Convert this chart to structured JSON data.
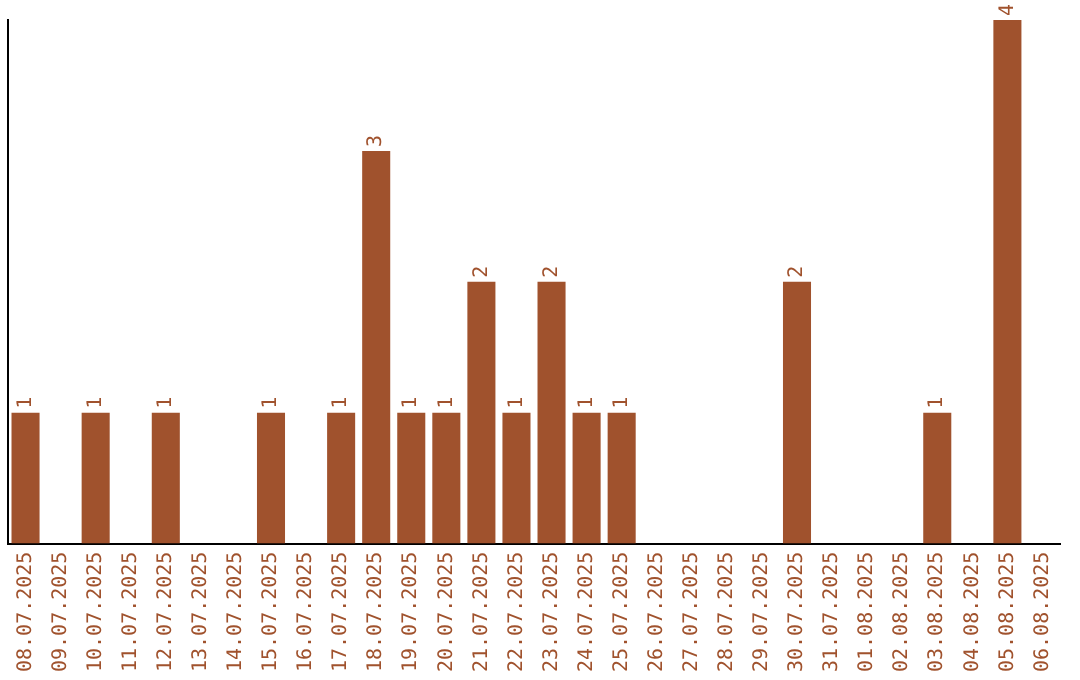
{
  "chart_data": {
    "type": "bar",
    "categories": [
      "08.07.2025",
      "09.07.2025",
      "10.07.2025",
      "11.07.2025",
      "12.07.2025",
      "13.07.2025",
      "14.07.2025",
      "15.07.2025",
      "16.07.2025",
      "17.07.2025",
      "18.07.2025",
      "19.07.2025",
      "20.07.2025",
      "21.07.2025",
      "22.07.2025",
      "23.07.2025",
      "24.07.2025",
      "25.07.2025",
      "26.07.2025",
      "27.07.2025",
      "28.07.2025",
      "29.07.2025",
      "30.07.2025",
      "31.07.2025",
      "01.08.2025",
      "02.08.2025",
      "03.08.2025",
      "04.08.2025",
      "05.08.2025",
      "06.08.2025"
    ],
    "values": [
      1,
      0,
      1,
      0,
      1,
      0,
      0,
      1,
      0,
      1,
      3,
      1,
      1,
      2,
      1,
      2,
      1,
      1,
      0,
      0,
      0,
      0,
      2,
      0,
      0,
      0,
      1,
      0,
      4,
      0
    ],
    "value_labels": [
      "1",
      null,
      "1",
      null,
      "1",
      null,
      null,
      "1",
      null,
      "1",
      "3",
      "1",
      "1",
      "2",
      "1",
      "2",
      "1",
      "1",
      null,
      null,
      null,
      null,
      "2",
      null,
      null,
      null,
      "1",
      null,
      "4",
      null
    ],
    "color": "#a0522d",
    "grid": false,
    "legend": false,
    "tick_labels": "x"
  }
}
